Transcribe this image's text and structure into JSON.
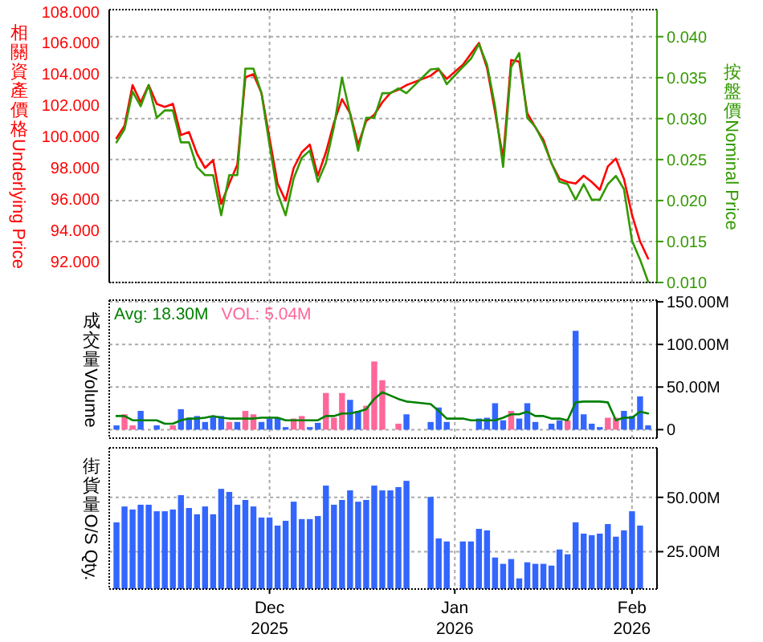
{
  "chart_data": [
    {
      "type": "line",
      "tick_labels": "y",
      "grid": true,
      "categories": [
        null,
        null,
        null,
        null,
        null,
        null,
        null,
        null,
        null,
        null,
        null,
        null,
        null,
        null,
        null,
        null,
        null,
        null,
        null,
        null,
        null,
        null,
        null,
        null,
        null,
        null,
        null,
        null,
        null,
        null,
        null,
        null,
        null,
        null,
        null,
        null,
        null,
        null,
        null,
        null,
        null,
        null,
        null,
        null,
        null,
        null,
        null,
        null,
        null,
        null,
        null,
        null,
        null,
        null,
        null,
        null,
        null,
        null,
        null,
        null,
        null,
        null,
        null,
        null,
        null,
        null,
        null
      ],
      "ylabel": "相關資產價格Underlying Price",
      "y2label": "按盤價Nominal Price",
      "ylim": [
        90.67,
        108.13
      ],
      "yticks": [
        {
          "value": 92,
          "label": "92.000"
        },
        {
          "value": 94,
          "label": "94.000"
        },
        {
          "value": 96,
          "label": "96.000"
        },
        {
          "value": 98,
          "label": "98.000"
        },
        {
          "value": 100,
          "label": "100.000"
        },
        {
          "value": 102,
          "label": "102.000"
        },
        {
          "value": 104,
          "label": "104.000"
        },
        {
          "value": 106,
          "label": "106.000"
        },
        {
          "value": 108,
          "label": "108.000"
        }
      ],
      "y2lim": [
        0.01,
        0.0433
      ],
      "y2ticks": [
        {
          "value": 0.01,
          "label": "0.010"
        },
        {
          "value": 0.015,
          "label": "0.015"
        },
        {
          "value": 0.02,
          "label": "0.020"
        },
        {
          "value": 0.025,
          "label": "0.025"
        },
        {
          "value": 0.03,
          "label": "0.030"
        },
        {
          "value": 0.035,
          "label": "0.035"
        },
        {
          "value": 0.04,
          "label": "0.040"
        }
      ],
      "series": [
        {
          "color": "#ff0000",
          "values": [
            99.9,
            100.7,
            103.3,
            102.2,
            103.3,
            102.1,
            101.9,
            102.1,
            100.1,
            100.3,
            98.9,
            98.0,
            98.5,
            95.7,
            97.0,
            98.2,
            103.8,
            104.0,
            102.8,
            99.9,
            97.0,
            95.9,
            98.0,
            99.0,
            99.5,
            97.5,
            99.0,
            100.9,
            102.4,
            101.5,
            99.5,
            101.0,
            101.4,
            102.2,
            102.8,
            103.0,
            103.3,
            null,
            null,
            103.9,
            104.3,
            103.7,
            null,
            104.6,
            105.3,
            106.0,
            104.4,
            101.6,
            98.6,
            104.9,
            104.8,
            101.5,
            100.6,
            99.8,
            98.3,
            97.3,
            97.1,
            97.0,
            97.5,
            97.1,
            96.6,
            98.1,
            98.6,
            97.3,
            95.0,
            93.3,
            92.2
          ]
        },
        {
          "color": "#339900",
          "axis": "y2",
          "values": [
            0.0271,
            0.0287,
            0.0333,
            0.0315,
            0.0341,
            0.0301,
            0.031,
            0.031,
            0.0271,
            0.0271,
            0.0241,
            0.0231,
            0.0231,
            0.0182,
            0.0231,
            0.0231,
            0.0361,
            0.0361,
            0.0331,
            0.0268,
            0.0209,
            0.0182,
            0.0227,
            0.0252,
            0.0261,
            0.0223,
            0.0246,
            0.029,
            0.035,
            0.0306,
            0.0261,
            0.0301,
            0.0301,
            0.0331,
            0.0331,
            0.0337,
            0.0331,
            null,
            null,
            0.036,
            0.0361,
            0.0342,
            null,
            0.0363,
            0.0373,
            0.0391,
            0.0366,
            0.0315,
            0.0241,
            0.0363,
            0.038,
            0.0301,
            0.029,
            0.0271,
            0.0246,
            0.0223,
            0.022,
            0.0201,
            0.022,
            0.0201,
            0.0201,
            0.022,
            0.023,
            0.0214,
            0.0151,
            0.0128,
            0.0101
          ]
        }
      ]
    },
    {
      "type": "bar",
      "tick_labels": "y",
      "grid": true,
      "legend": "top left",
      "categories": [
        null,
        null,
        null,
        null,
        null,
        null,
        null,
        null,
        null,
        null,
        null,
        null,
        null,
        null,
        null,
        null,
        null,
        null,
        null,
        null,
        null,
        null,
        null,
        null,
        null,
        null,
        null,
        null,
        null,
        null,
        null,
        null,
        null,
        null,
        null,
        null,
        null,
        null,
        null,
        null,
        null,
        null,
        null,
        null,
        null,
        null,
        null,
        null,
        null,
        null,
        null,
        null,
        null,
        null,
        null,
        null,
        null,
        null,
        null,
        null,
        null,
        null,
        null,
        null,
        null,
        null,
        null
      ],
      "ylabel": "成交量Volume",
      "ylim": [
        -10,
        152
      ],
      "yticks": [
        0,
        {
          "value": 50,
          "label": "50.00M"
        },
        {
          "value": 100,
          "label": "100.00M"
        },
        {
          "value": 150,
          "label": "150.00M"
        }
      ],
      "annotations": [
        "VOL: 5.04M"
      ],
      "series": [
        {
          "values": [
            5,
            18,
            5,
            22,
            null,
            5,
            null,
            5,
            24,
            14,
            16,
            9,
            16,
            16,
            9,
            9,
            22,
            18,
            9,
            13,
            14,
            3,
            13,
            16,
            3,
            8,
            43,
            14,
            43,
            35,
            22,
            28,
            80,
            58,
            null,
            7,
            18,
            null,
            null,
            9,
            26,
            9,
            null,
            null,
            null,
            13,
            14,
            31,
            11,
            22,
            13,
            31,
            9,
            null,
            7,
            11,
            11,
            116,
            18,
            7,
            3,
            14,
            14,
            22,
            16,
            39,
            5
          ],
          "colors": [
            "#3366ff",
            "#ff6699",
            "#ff6699",
            "#3366ff",
            null,
            "#3366ff",
            null,
            "#ff6699",
            "#3366ff",
            "#3366ff",
            "#3366ff",
            "#3366ff",
            "#3366ff",
            "#3366ff",
            "#ff6699",
            "#3366ff",
            "#ff6699",
            "#ff6699",
            "#3366ff",
            "#3366ff",
            "#3366ff",
            "#3366ff",
            "#ff6699",
            "#ff6699",
            "#3366ff",
            "#3366ff",
            "#ff6699",
            "#ff6699",
            "#ff6699",
            "#3366ff",
            "#3366ff",
            "#ff6699",
            "#ff6699",
            "#ff6699",
            null,
            "#ff6699",
            "#3366ff",
            null,
            null,
            "#3366ff",
            "#3366ff",
            "#3366ff",
            null,
            null,
            null,
            "#3366ff",
            "#3366ff",
            "#3366ff",
            "#3366ff",
            "#ff6699",
            "#3366ff",
            "#3366ff",
            "#3366ff",
            null,
            "#3366ff",
            "#3366ff",
            "#ff6699",
            "#3366ff",
            "#3366ff",
            "#3366ff",
            "#3366ff",
            "#ff6699",
            "#ff6699",
            "#3366ff",
            "#3366ff",
            "#3366ff",
            "#3366ff"
          ]
        },
        {
          "type": "line",
          "name": "Avg: 18.30M",
          "color": "#008000",
          "values": [
            16,
            16,
            11,
            11,
            11,
            11,
            7,
            7,
            11,
            13,
            13,
            14,
            16,
            14,
            13,
            13,
            13,
            13,
            14,
            14,
            14,
            11,
            11,
            11,
            11,
            11,
            16,
            16,
            19,
            19,
            21,
            24,
            36,
            44,
            40,
            36,
            33,
            null,
            null,
            30,
            22,
            13,
            null,
            13,
            11,
            11,
            11,
            11,
            14,
            18,
            18,
            21,
            16,
            16,
            13,
            13,
            11,
            32,
            33,
            33,
            33,
            32,
            11,
            14,
            14,
            21,
            19
          ]
        }
      ]
    },
    {
      "type": "bar",
      "grid": true,
      "categories": [
        null,
        null,
        null,
        null,
        null,
        null,
        null,
        null,
        null,
        null,
        null,
        null,
        null,
        null,
        null,
        null,
        null,
        null,
        null,
        "Dec 2025",
        null,
        null,
        null,
        null,
        null,
        null,
        null,
        null,
        null,
        null,
        null,
        null,
        null,
        null,
        null,
        null,
        null,
        null,
        null,
        null,
        null,
        null,
        "Jan 2026",
        null,
        null,
        null,
        null,
        null,
        null,
        null,
        null,
        null,
        null,
        null,
        null,
        null,
        null,
        null,
        null,
        null,
        null,
        null,
        null,
        null,
        "Feb 2026",
        null,
        null
      ],
      "ylabel": "街貨量O/S Qty.",
      "ylim": [
        7.8,
        72.8
      ],
      "yticks": [
        {
          "value": 25,
          "label": "25.00M"
        },
        {
          "value": 50,
          "label": "50.00M"
        }
      ],
      "series": [
        {
          "color": "#3366ff",
          "values": [
            38.5,
            45.8,
            44.4,
            46.6,
            46.6,
            43.6,
            43.6,
            44.4,
            51.0,
            45.1,
            42.2,
            45.8,
            42.2,
            53.9,
            52.5,
            46.6,
            48.8,
            45.8,
            40.7,
            40.7,
            37.0,
            39.2,
            48.0,
            40.0,
            40.0,
            41.4,
            55.4,
            46.6,
            48.8,
            53.2,
            48.0,
            48.8,
            55.4,
            53.2,
            53.2,
            54.7,
            57.6,
            null,
            null,
            50.2,
            31.1,
            29.7,
            null,
            29.7,
            29.7,
            35.5,
            34.8,
            22.3,
            19.4,
            21.6,
            12.7,
            20.1,
            19.4,
            19.4,
            18.6,
            26.0,
            23.8,
            38.5,
            33.3,
            32.6,
            33.3,
            37.7,
            31.9,
            34.8,
            43.6,
            37.0,
            null
          ]
        }
      ]
    }
  ]
}
